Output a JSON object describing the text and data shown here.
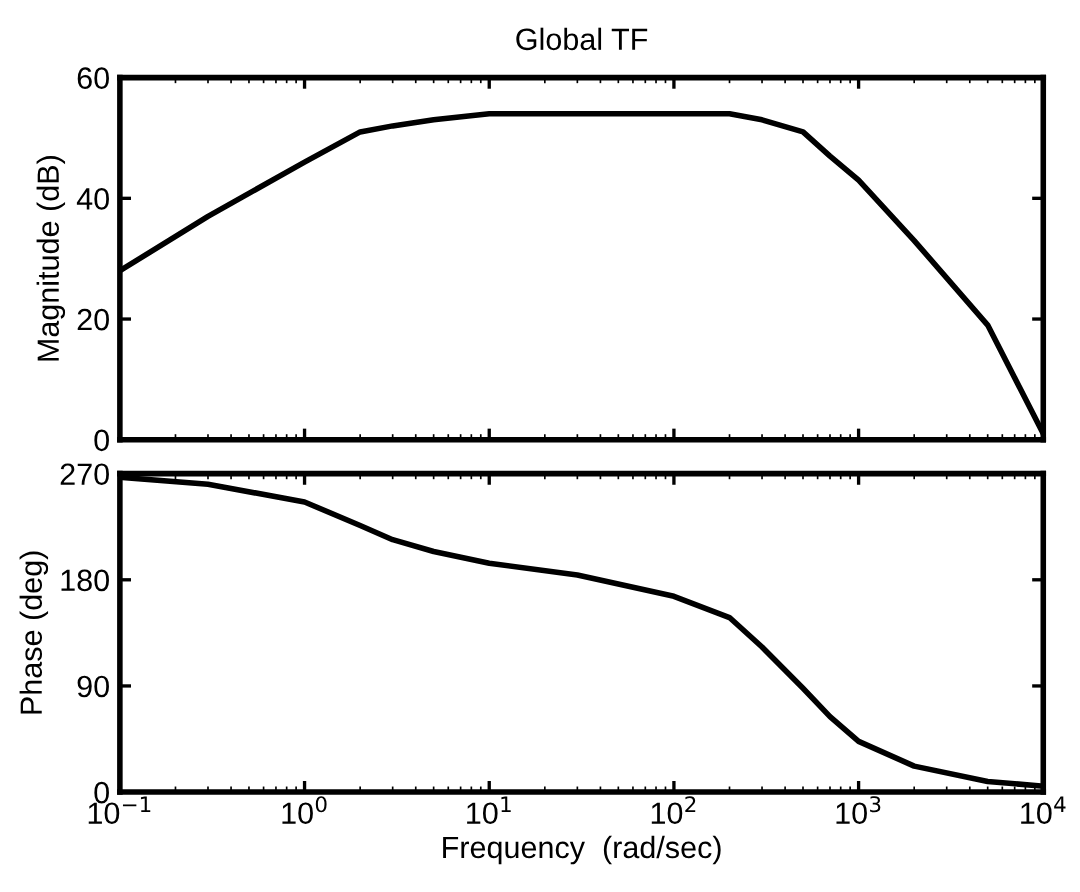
{
  "chart_data": [
    {
      "type": "line",
      "title": "Global TF",
      "ylabel": "Magnitude (dB)",
      "log": "x",
      "grid": false,
      "tick_labels": "y",
      "x": [
        0.1,
        0.3,
        1,
        2,
        3,
        5,
        10,
        100,
        200,
        300,
        500,
        700,
        1000,
        2000,
        5000,
        10000
      ],
      "series": [
        {
          "color": "#000000",
          "values": [
            28,
            37,
            46,
            51,
            52,
            53,
            54,
            54,
            54,
            53,
            51,
            47,
            43,
            33,
            19,
            1
          ]
        }
      ],
      "xlim": [
        0.1,
        10000
      ],
      "xticks": [
        {
          "value": 0.1,
          "label": null
        },
        {
          "value": 1,
          "label": null
        },
        {
          "value": 10,
          "label": null
        },
        {
          "value": 100,
          "label": null
        },
        {
          "value": 1000,
          "label": null
        },
        {
          "value": 10000,
          "label": null
        }
      ],
      "ylim": [
        0,
        60
      ],
      "yticks": [
        0,
        20,
        40,
        60
      ]
    },
    {
      "type": "line",
      "xlabel": "Frequency  (rad/sec)",
      "ylabel": "Phase (deg)",
      "log": "x",
      "grid": false,
      "x": [
        0.1,
        0.3,
        1,
        2,
        3,
        5,
        10,
        30,
        100,
        200,
        300,
        500,
        700,
        1000,
        2000,
        5000,
        10000
      ],
      "series": [
        {
          "color": "#000000",
          "values": [
            267,
            261,
            246,
            226,
            214,
            204,
            194,
            184,
            166,
            148,
            123,
            88,
            64,
            43,
            22,
            9,
            5
          ]
        }
      ],
      "xlim": [
        0.1,
        10000
      ],
      "xticks": [
        {
          "value": 0.1,
          "label": "10$^{−1}$"
        },
        {
          "value": 1,
          "label": "10$^{0}$"
        },
        {
          "value": 10,
          "label": "10$^{1}$"
        },
        {
          "value": 100,
          "label": "10$^{2}$"
        },
        {
          "value": 1000,
          "label": "10$^{3}$"
        },
        {
          "value": 10000,
          "label": "10$^{4}$"
        }
      ],
      "ylim": [
        0,
        270
      ],
      "yticks": [
        0,
        90,
        180,
        270
      ]
    }
  ]
}
